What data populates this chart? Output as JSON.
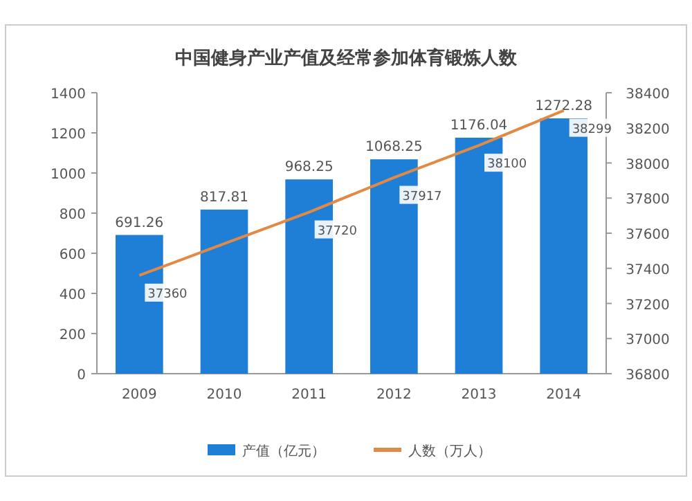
{
  "chart_data": {
    "type": "bar",
    "title": "中国健身产业产值及经常参加体育锻炼人数",
    "categories": [
      "2009",
      "2010",
      "2011",
      "2012",
      "2013",
      "2014"
    ],
    "series": [
      {
        "name": "产值（亿元）",
        "color": "#1f7fd6",
        "values": [
          691.26,
          817.81,
          968.25,
          1068.25,
          1176.04,
          1272.28
        ],
        "value_labels": [
          "691.26",
          "817.81",
          "968.25",
          "1068.25",
          "1176.04",
          "1272.28"
        ]
      },
      {
        "name": "人数（万人）",
        "type": "line",
        "axis": "y2",
        "color": "#e08a45",
        "values": [
          37360,
          37540,
          37720,
          37917,
          38100,
          38299
        ],
        "value_labels": [
          "37360",
          null,
          "37720",
          "37917",
          "38100",
          "38299"
        ]
      }
    ],
    "ylim": [
      0,
      1400
    ],
    "yticks": [
      0,
      200,
      400,
      600,
      800,
      1000,
      1200,
      1400
    ],
    "y2lim": [
      36800,
      38400
    ],
    "y2ticks": [
      36800,
      37000,
      37200,
      37400,
      37600,
      37800,
      38000,
      38200,
      38400
    ],
    "legend": "bottom",
    "grid": false
  }
}
